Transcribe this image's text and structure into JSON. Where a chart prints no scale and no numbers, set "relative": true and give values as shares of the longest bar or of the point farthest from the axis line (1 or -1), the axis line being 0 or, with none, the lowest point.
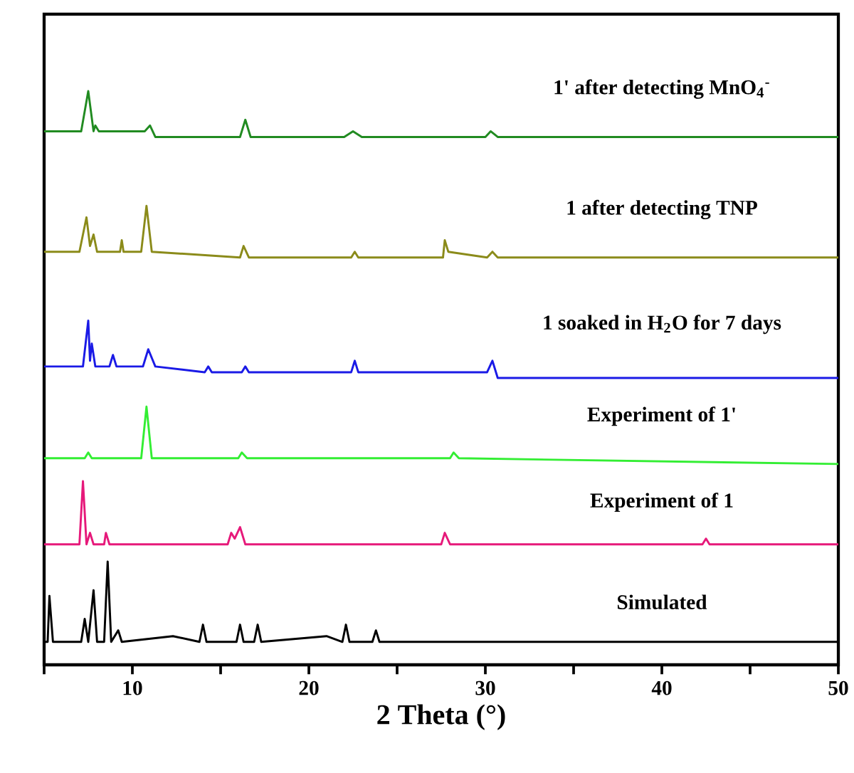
{
  "chart_data": {
    "type": "line",
    "relative": true,
    "xlabel": "2 Theta (°)",
    "xlim": [
      5,
      50
    ],
    "xticks": [
      {
        "value": 5,
        "label": null
      },
      10,
      {
        "value": 15,
        "label": null
      },
      20,
      {
        "value": 25,
        "label": null
      },
      30,
      {
        "value": 35,
        "label": null
      },
      40,
      {
        "value": 45,
        "label": null
      },
      50
    ],
    "series": [
      {
        "name": "1' after detecting MnO$_{4}$$^{-}$",
        "color": "#218b21",
        "x": [
          5,
          7.1,
          7.5,
          7.8,
          7.9,
          8.1,
          10.7,
          11.0,
          11.3,
          16.1,
          16.4,
          16.7,
          22.0,
          22.5,
          23.0,
          30.0,
          30.3,
          30.7,
          50
        ],
        "values": [
          0.93,
          0.93,
          1.0,
          0.93,
          0.94,
          0.93,
          0.93,
          0.94,
          0.92,
          0.92,
          0.95,
          0.92,
          0.92,
          0.93,
          0.92,
          0.92,
          0.93,
          0.92,
          0.92
        ]
      },
      {
        "name": "1 after detecting TNP",
        "color": "#8b8b1a",
        "x": [
          5,
          7.0,
          7.4,
          7.6,
          7.8,
          8.0,
          9.3,
          9.4,
          9.5,
          10.5,
          10.8,
          11.1,
          16.1,
          16.3,
          16.6,
          22.4,
          22.6,
          22.8,
          27.6,
          27.7,
          27.9,
          30.1,
          30.4,
          30.7,
          50
        ],
        "values": [
          0.72,
          0.72,
          0.78,
          0.73,
          0.75,
          0.72,
          0.72,
          0.74,
          0.72,
          0.72,
          0.8,
          0.72,
          0.71,
          0.73,
          0.71,
          0.71,
          0.72,
          0.71,
          0.71,
          0.74,
          0.72,
          0.71,
          0.72,
          0.71,
          0.71
        ]
      },
      {
        "name": "1 soaked in H$_{2}$O for 7 days",
        "color": "#1a1ae6",
        "x": [
          5,
          7.2,
          7.5,
          7.6,
          7.7,
          7.9,
          8.7,
          8.9,
          9.1,
          10.6,
          10.9,
          11.3,
          14.1,
          14.3,
          14.5,
          16.2,
          16.4,
          16.6,
          22.4,
          22.6,
          22.8,
          30.1,
          30.4,
          30.7,
          50
        ],
        "values": [
          0.52,
          0.52,
          0.6,
          0.53,
          0.56,
          0.52,
          0.52,
          0.54,
          0.52,
          0.52,
          0.55,
          0.52,
          0.51,
          0.52,
          0.51,
          0.51,
          0.52,
          0.51,
          0.51,
          0.53,
          0.51,
          0.51,
          0.53,
          0.5,
          0.5
        ]
      },
      {
        "name": "Experiment of 1'",
        "color": "#33ee33",
        "x": [
          5,
          7.3,
          7.5,
          7.7,
          10.5,
          10.8,
          11.1,
          16.0,
          16.2,
          16.5,
          28.0,
          28.2,
          28.5,
          50
        ],
        "values": [
          0.36,
          0.36,
          0.37,
          0.36,
          0.36,
          0.45,
          0.36,
          0.36,
          0.37,
          0.36,
          0.36,
          0.37,
          0.36,
          0.35
        ]
      },
      {
        "name": "Experiment of 1",
        "color": "#e6197a",
        "x": [
          5,
          7.0,
          7.2,
          7.4,
          7.6,
          7.8,
          8.4,
          8.5,
          8.7,
          15.4,
          15.6,
          15.8,
          16.1,
          16.4,
          27.5,
          27.7,
          28.0,
          42.3,
          42.5,
          42.7,
          50
        ],
        "values": [
          0.21,
          0.21,
          0.32,
          0.21,
          0.23,
          0.21,
          0.21,
          0.23,
          0.21,
          0.21,
          0.23,
          0.22,
          0.24,
          0.21,
          0.21,
          0.23,
          0.21,
          0.21,
          0.22,
          0.21,
          0.21
        ]
      },
      {
        "name": "Simulated",
        "color": "#000000",
        "x": [
          5,
          5.2,
          5.3,
          5.5,
          7.1,
          7.3,
          7.5,
          7.8,
          8.0,
          8.4,
          8.6,
          8.8,
          9.2,
          9.4,
          12.3,
          13.8,
          14.0,
          14.2,
          15.9,
          16.1,
          16.3,
          16.9,
          17.1,
          17.3,
          21.0,
          21.9,
          22.1,
          22.3,
          23.6,
          23.8,
          24.0,
          50
        ],
        "values": [
          0.04,
          0.04,
          0.12,
          0.04,
          0.04,
          0.08,
          0.04,
          0.13,
          0.04,
          0.04,
          0.18,
          0.04,
          0.06,
          0.04,
          0.05,
          0.04,
          0.07,
          0.04,
          0.04,
          0.07,
          0.04,
          0.04,
          0.07,
          0.04,
          0.05,
          0.04,
          0.07,
          0.04,
          0.04,
          0.06,
          0.04,
          0.04
        ]
      }
    ]
  }
}
